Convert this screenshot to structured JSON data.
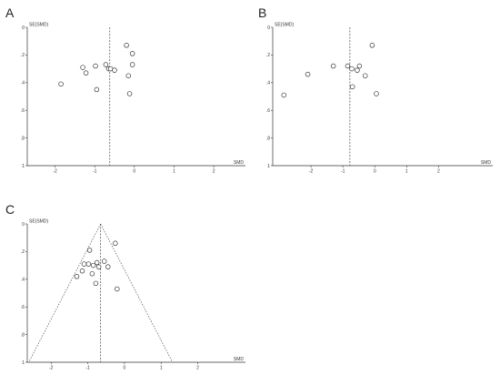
{
  "chart_data": [
    {
      "type": "scatter",
      "panel_label": "A",
      "xlabel": "SMD",
      "ylabel": "SE(SMD)",
      "xticks": [
        -2,
        -1,
        0,
        1,
        2
      ],
      "xlim": [
        -2.7,
        2.8
      ],
      "yticks": [
        0,
        0.2,
        0.4,
        0.6,
        0.8,
        1
      ],
      "ylim": [
        0,
        1
      ],
      "y_inverted": true,
      "pooled_smd": -0.62,
      "funnel": false,
      "points": [
        {
          "x": -1.85,
          "y": 0.41
        },
        {
          "x": -1.3,
          "y": 0.29
        },
        {
          "x": -1.22,
          "y": 0.33
        },
        {
          "x": -0.98,
          "y": 0.28
        },
        {
          "x": -0.95,
          "y": 0.45
        },
        {
          "x": -0.72,
          "y": 0.27
        },
        {
          "x": -0.65,
          "y": 0.3
        },
        {
          "x": -0.6,
          "y": 0.3
        },
        {
          "x": -0.5,
          "y": 0.31
        },
        {
          "x": -0.2,
          "y": 0.13
        },
        {
          "x": -0.15,
          "y": 0.35
        },
        {
          "x": -0.12,
          "y": 0.48
        },
        {
          "x": -0.05,
          "y": 0.19
        },
        {
          "x": -0.05,
          "y": 0.27
        }
      ]
    },
    {
      "type": "scatter",
      "panel_label": "B",
      "xlabel": "SMD",
      "ylabel": "SE(SMD)",
      "xticks": [
        -2,
        -1,
        0,
        1,
        2
      ],
      "xlim": [
        -3.2,
        3.7
      ],
      "yticks": [
        0,
        0.2,
        0.4,
        0.6,
        0.8,
        1
      ],
      "ylim": [
        0,
        1
      ],
      "y_inverted": true,
      "pooled_smd": -0.78,
      "funnel": false,
      "points": [
        {
          "x": -2.85,
          "y": 0.49
        },
        {
          "x": -2.1,
          "y": 0.34
        },
        {
          "x": -1.3,
          "y": 0.28
        },
        {
          "x": -0.85,
          "y": 0.28
        },
        {
          "x": -0.72,
          "y": 0.3
        },
        {
          "x": -0.7,
          "y": 0.43
        },
        {
          "x": -0.55,
          "y": 0.31
        },
        {
          "x": -0.48,
          "y": 0.28
        },
        {
          "x": -0.3,
          "y": 0.35
        },
        {
          "x": -0.08,
          "y": 0.13
        },
        {
          "x": 0.05,
          "y": 0.48
        }
      ]
    },
    {
      "type": "scatter",
      "panel_label": "C",
      "xlabel": "SMD",
      "ylabel": "SE(SMD)",
      "xticks": [
        -2,
        -1,
        0,
        1,
        2
      ],
      "xlim": [
        -2.65,
        3.3
      ],
      "yticks": [
        0,
        0.2,
        0.4,
        0.6,
        0.8,
        1
      ],
      "ylim": [
        0,
        1
      ],
      "y_inverted": true,
      "pooled_smd": -0.65,
      "funnel": true,
      "points": [
        {
          "x": -1.3,
          "y": 0.38
        },
        {
          "x": -1.15,
          "y": 0.34
        },
        {
          "x": -1.1,
          "y": 0.29
        },
        {
          "x": -0.98,
          "y": 0.29
        },
        {
          "x": -0.95,
          "y": 0.19
        },
        {
          "x": -0.88,
          "y": 0.36
        },
        {
          "x": -0.85,
          "y": 0.3
        },
        {
          "x": -0.78,
          "y": 0.43
        },
        {
          "x": -0.75,
          "y": 0.28
        },
        {
          "x": -0.7,
          "y": 0.31
        },
        {
          "x": -0.55,
          "y": 0.27
        },
        {
          "x": -0.45,
          "y": 0.31
        },
        {
          "x": -0.25,
          "y": 0.14
        },
        {
          "x": -0.2,
          "y": 0.47
        }
      ]
    }
  ]
}
